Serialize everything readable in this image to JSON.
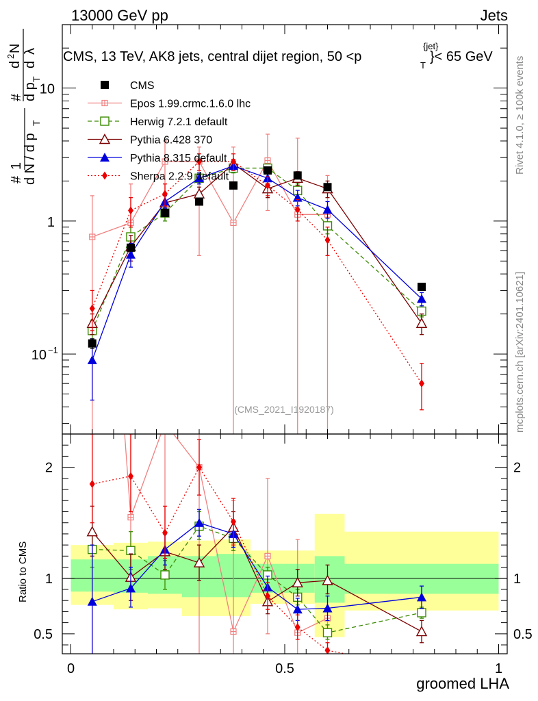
{
  "header": {
    "left": "13000 GeV pp",
    "right": "Jets",
    "title": "CMS, 13 TeV, AK8 jets, central dijet region, 50 <p",
    "title_sup": "{jet}",
    "title_sub": "T",
    "title_end": "}< 65 GeV",
    "side_top": "Rivet 4.1.0, ≥ 100k events",
    "side_bottom": "mcplots.cern.ch [arXiv:2401.10621]",
    "analysis": "(CMS_2021_I1920187)"
  },
  "chart_data": {
    "type": "line",
    "title": "CMS, 13 TeV, AK8 jets, central dijet region, 50 < pT jet < 65 GeV",
    "xlabel": "groomed LHA",
    "ylabel": "1/dN/dpT  d²N/dpT dλ",
    "ratio_ylabel": "Ratio to CMS",
    "xlim": [
      -0.02,
      1.02
    ],
    "ylim": [
      0.025,
      30
    ],
    "yscale": "log",
    "ratio_ylim": [
      0.32,
      2.3
    ],
    "x_ticks": [
      {
        "v": 0,
        "label": "0"
      },
      {
        "v": 0.5,
        "label": "0.5"
      },
      {
        "v": 1,
        "label": "1"
      }
    ],
    "y_ticks": [
      {
        "v": 0.1,
        "label": "10",
        "sup": "−1"
      },
      {
        "v": 1,
        "label": "1",
        "sup": ""
      },
      {
        "v": 10,
        "label": "10",
        "sup": ""
      }
    ],
    "ratio_ticks": [
      {
        "v": 0.5,
        "label": "0.5"
      },
      {
        "v": 1,
        "label": "1"
      },
      {
        "v": 2,
        "label": "2"
      }
    ],
    "bands": {
      "edges": [
        0,
        0.1,
        0.18,
        0.26,
        0.34,
        0.42,
        0.57,
        0.64,
        1.0
      ],
      "inner": [
        [
          0.88,
          1.17
        ],
        [
          0.87,
          1.17
        ],
        [
          0.86,
          1.2
        ],
        [
          0.83,
          1.2
        ],
        [
          0.83,
          1.22
        ],
        [
          0.87,
          1.13
        ],
        [
          0.78,
          1.2
        ],
        [
          0.86,
          1.13
        ]
      ],
      "outer": [
        [
          0.76,
          1.3
        ],
        [
          0.72,
          1.32
        ],
        [
          0.73,
          1.33
        ],
        [
          0.66,
          1.34
        ],
        [
          0.66,
          1.35
        ],
        [
          0.77,
          1.25
        ],
        [
          0.47,
          1.58
        ],
        [
          0.71,
          1.42
        ]
      ]
    },
    "series": [
      {
        "name": "CMS",
        "color": "#000000",
        "marker": "square-filled",
        "dash": "none",
        "x": [
          0.05,
          0.14,
          0.22,
          0.3,
          0.38,
          0.46,
          0.53,
          0.6,
          0.82
        ],
        "values": [
          0.12,
          0.63,
          1.15,
          1.4,
          1.85,
          2.4,
          2.2,
          1.8,
          0.32
        ],
        "ratio": [
          1,
          1,
          1,
          1,
          1,
          1,
          1,
          1,
          1
        ],
        "err_lo": [
          0.11,
          0.62,
          1.14,
          1.39,
          1.84,
          2.39,
          2.19,
          1.79,
          0.31
        ],
        "err_hi": [
          0.13,
          0.64,
          1.16,
          1.41,
          1.86,
          2.41,
          2.21,
          1.81,
          0.33
        ]
      },
      {
        "name": "Epos 1.99.crmc.1.6.0 lhc",
        "color": "#f08080",
        "marker": "cross-square",
        "dash": "none",
        "x": [
          0.05,
          0.14,
          0.22,
          0.3,
          0.38,
          0.46,
          0.53,
          0.6
        ],
        "values": [
          0.76,
          0.97,
          2.8,
          2.8,
          0.97,
          2.85,
          1.12,
          1.12
        ],
        "ratio": [
          6.3,
          1.55,
          2.4,
          2.0,
          0.52,
          1.2,
          0.51,
          0.64
        ],
        "err_lo": [
          0.001,
          0.5,
          1.6,
          0.55,
          0.001,
          1.2,
          0.001,
          0.001
        ],
        "err_hi": [
          1.55,
          1.9,
          4.0,
          3.6,
          3.6,
          4.5,
          4.2,
          2.2
        ],
        "ratio_err_lo": [
          0.3,
          0.8,
          1.4,
          0.3,
          0.3,
          0.5,
          0.3,
          0.3
        ],
        "ratio_err_hi": [
          9,
          2.5,
          3.4,
          2.5,
          1.7,
          1.9,
          1.35,
          1.0
        ]
      },
      {
        "name": "Herwig 7.2.1 default",
        "color": "#3a8a00",
        "marker": "square-open",
        "dash": "6,4",
        "x": [
          0.05,
          0.14,
          0.22,
          0.3,
          0.38,
          0.46,
          0.53,
          0.6,
          0.82
        ],
        "values": [
          0.15,
          0.76,
          1.15,
          2.1,
          2.5,
          2.5,
          1.7,
          0.92,
          0.21
        ],
        "ratio": [
          1.26,
          1.25,
          1.03,
          1.47,
          1.36,
          1.03,
          0.83,
          0.51,
          0.69
        ],
        "err_lo": [
          0.12,
          0.6,
          1.0,
          1.9,
          2.3,
          2.35,
          1.5,
          0.8,
          0.19
        ],
        "err_hi": [
          0.18,
          0.9,
          1.3,
          2.3,
          2.7,
          2.65,
          1.9,
          1.05,
          0.23
        ],
        "ratio_err_lo": [
          1.1,
          1.08,
          0.9,
          1.35,
          1.25,
          0.96,
          0.76,
          0.45,
          0.64
        ],
        "ratio_err_hi": [
          1.42,
          1.42,
          1.16,
          1.6,
          1.47,
          1.1,
          0.9,
          0.58,
          0.74
        ]
      },
      {
        "name": "Pythia 6.428 370",
        "color": "#7b0000",
        "marker": "triangle-open",
        "dash": "none",
        "x": [
          0.05,
          0.14,
          0.22,
          0.3,
          0.38,
          0.46,
          0.53,
          0.6,
          0.82
        ],
        "values": [
          0.17,
          0.64,
          1.37,
          1.6,
          2.7,
          1.75,
          2.1,
          1.75,
          0.17
        ],
        "ratio": [
          1.42,
          1.01,
          1.24,
          1.14,
          1.46,
          0.79,
          0.96,
          0.98,
          0.52
        ],
        "err_lo": [
          0.14,
          0.5,
          1.2,
          1.4,
          2.5,
          1.5,
          1.85,
          1.5,
          0.14
        ],
        "err_hi": [
          0.2,
          0.78,
          1.55,
          1.8,
          2.9,
          2.0,
          2.35,
          2.0,
          0.2
        ],
        "ratio_err_lo": [
          1.2,
          0.8,
          1.08,
          0.98,
          1.32,
          0.68,
          0.84,
          0.86,
          0.42
        ],
        "ratio_err_hi": [
          1.65,
          1.22,
          1.4,
          1.3,
          1.6,
          0.9,
          1.08,
          1.12,
          0.62
        ]
      },
      {
        "name": "Pythia 8.315 default",
        "color": "#0000dd",
        "marker": "triangle-filled",
        "dash": "none",
        "x": [
          0.05,
          0.14,
          0.22,
          0.3,
          0.38,
          0.46,
          0.53,
          0.6,
          0.82
        ],
        "values": [
          0.09,
          0.56,
          1.4,
          2.1,
          2.6,
          2.1,
          1.5,
          1.22,
          0.26
        ],
        "ratio": [
          0.79,
          0.91,
          1.26,
          1.5,
          1.4,
          0.92,
          0.72,
          0.73,
          0.83
        ],
        "err_lo": [
          0.045,
          0.45,
          1.25,
          1.9,
          2.4,
          1.9,
          1.3,
          1.05,
          0.23
        ],
        "err_hi": [
          0.13,
          0.68,
          1.55,
          2.3,
          2.8,
          2.3,
          1.7,
          1.4,
          0.29
        ],
        "ratio_err_lo": [
          0.3,
          0.74,
          1.12,
          1.38,
          1.28,
          0.82,
          0.62,
          0.62,
          0.73
        ],
        "ratio_err_hi": [
          1.3,
          1.1,
          1.4,
          1.62,
          1.52,
          1.02,
          0.82,
          0.84,
          0.93
        ]
      },
      {
        "name": "Sherpa 2.2.9 default",
        "color": "#ee0000",
        "marker": "diamond-filled",
        "dash": "2,3",
        "x": [
          0.05,
          0.14,
          0.22,
          0.3,
          0.38,
          0.46,
          0.53,
          0.6,
          0.82
        ],
        "values": [
          0.22,
          1.2,
          1.6,
          2.8,
          2.8,
          1.85,
          1.22,
          0.72,
          0.06
        ],
        "ratio": [
          1.85,
          1.92,
          1.41,
          2.0,
          1.51,
          0.84,
          0.56,
          0.35,
          0.19
        ],
        "err_lo": [
          0.15,
          0.9,
          1.3,
          2.4,
          2.4,
          1.55,
          1.0,
          0.55,
          0.038
        ],
        "err_hi": [
          0.3,
          1.5,
          1.9,
          3.2,
          3.2,
          2.15,
          1.45,
          0.9,
          0.085
        ],
        "ratio_err_lo": [
          1.5,
          1.6,
          1.18,
          1.75,
          1.3,
          0.72,
          0.45,
          0.28,
          0.1
        ],
        "ratio_err_hi": [
          2.3,
          2.3,
          1.65,
          2.25,
          1.72,
          0.96,
          0.67,
          0.42,
          0.28
        ]
      }
    ]
  }
}
